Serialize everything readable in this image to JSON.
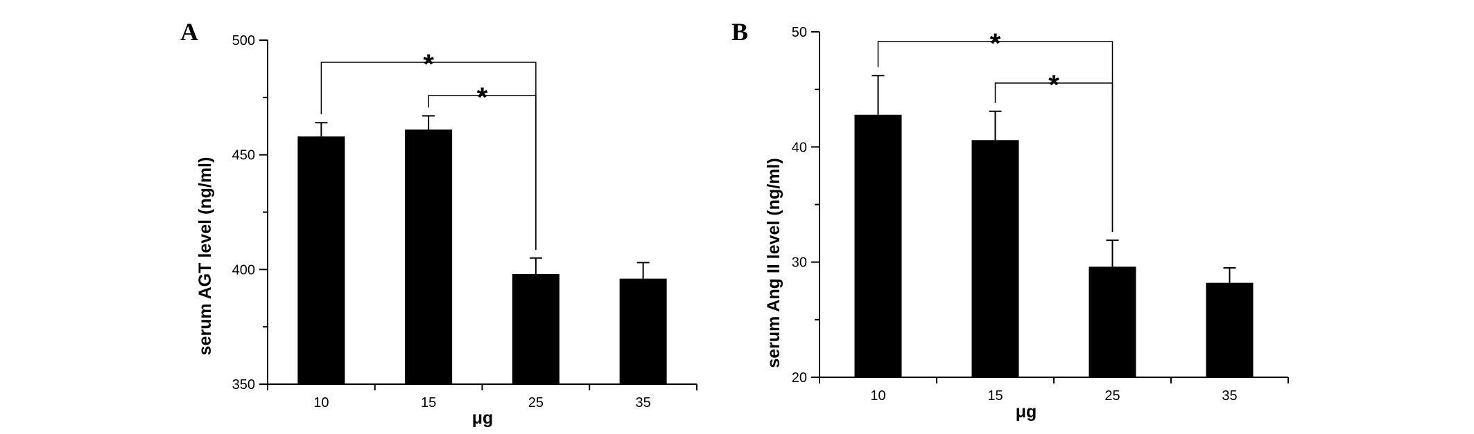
{
  "chart_data": [
    {
      "panel": "A",
      "type": "bar",
      "categories": [
        "10",
        "15",
        "25",
        "35"
      ],
      "values": [
        458,
        461,
        398,
        396
      ],
      "errors": [
        6,
        6,
        7,
        7
      ],
      "xlabel": "μg",
      "ylabel": "serum AGT level (ng/ml)",
      "ylim": [
        350,
        500
      ],
      "yticks": [
        "350",
        "400",
        "450",
        "500"
      ],
      "bar_color": "#000000",
      "grid": false,
      "significance": [
        {
          "from": "10",
          "to": "25",
          "label": "*"
        },
        {
          "from": "15",
          "to": "25",
          "label": "*"
        }
      ]
    },
    {
      "panel": "B",
      "type": "bar",
      "categories": [
        "10",
        "15",
        "25",
        "35"
      ],
      "values": [
        42.8,
        40.6,
        29.6,
        28.2
      ],
      "errors": [
        3.4,
        2.5,
        2.3,
        1.3
      ],
      "xlabel": "μg",
      "ylabel": "serum Ang II level (ng/ml)",
      "ylim": [
        20,
        50
      ],
      "yticks": [
        "20",
        "30",
        "40",
        "50"
      ],
      "bar_color": "#000000",
      "grid": false,
      "significance": [
        {
          "from": "10",
          "to": "25",
          "label": "*"
        },
        {
          "from": "15",
          "to": "25",
          "label": "*"
        }
      ]
    }
  ]
}
